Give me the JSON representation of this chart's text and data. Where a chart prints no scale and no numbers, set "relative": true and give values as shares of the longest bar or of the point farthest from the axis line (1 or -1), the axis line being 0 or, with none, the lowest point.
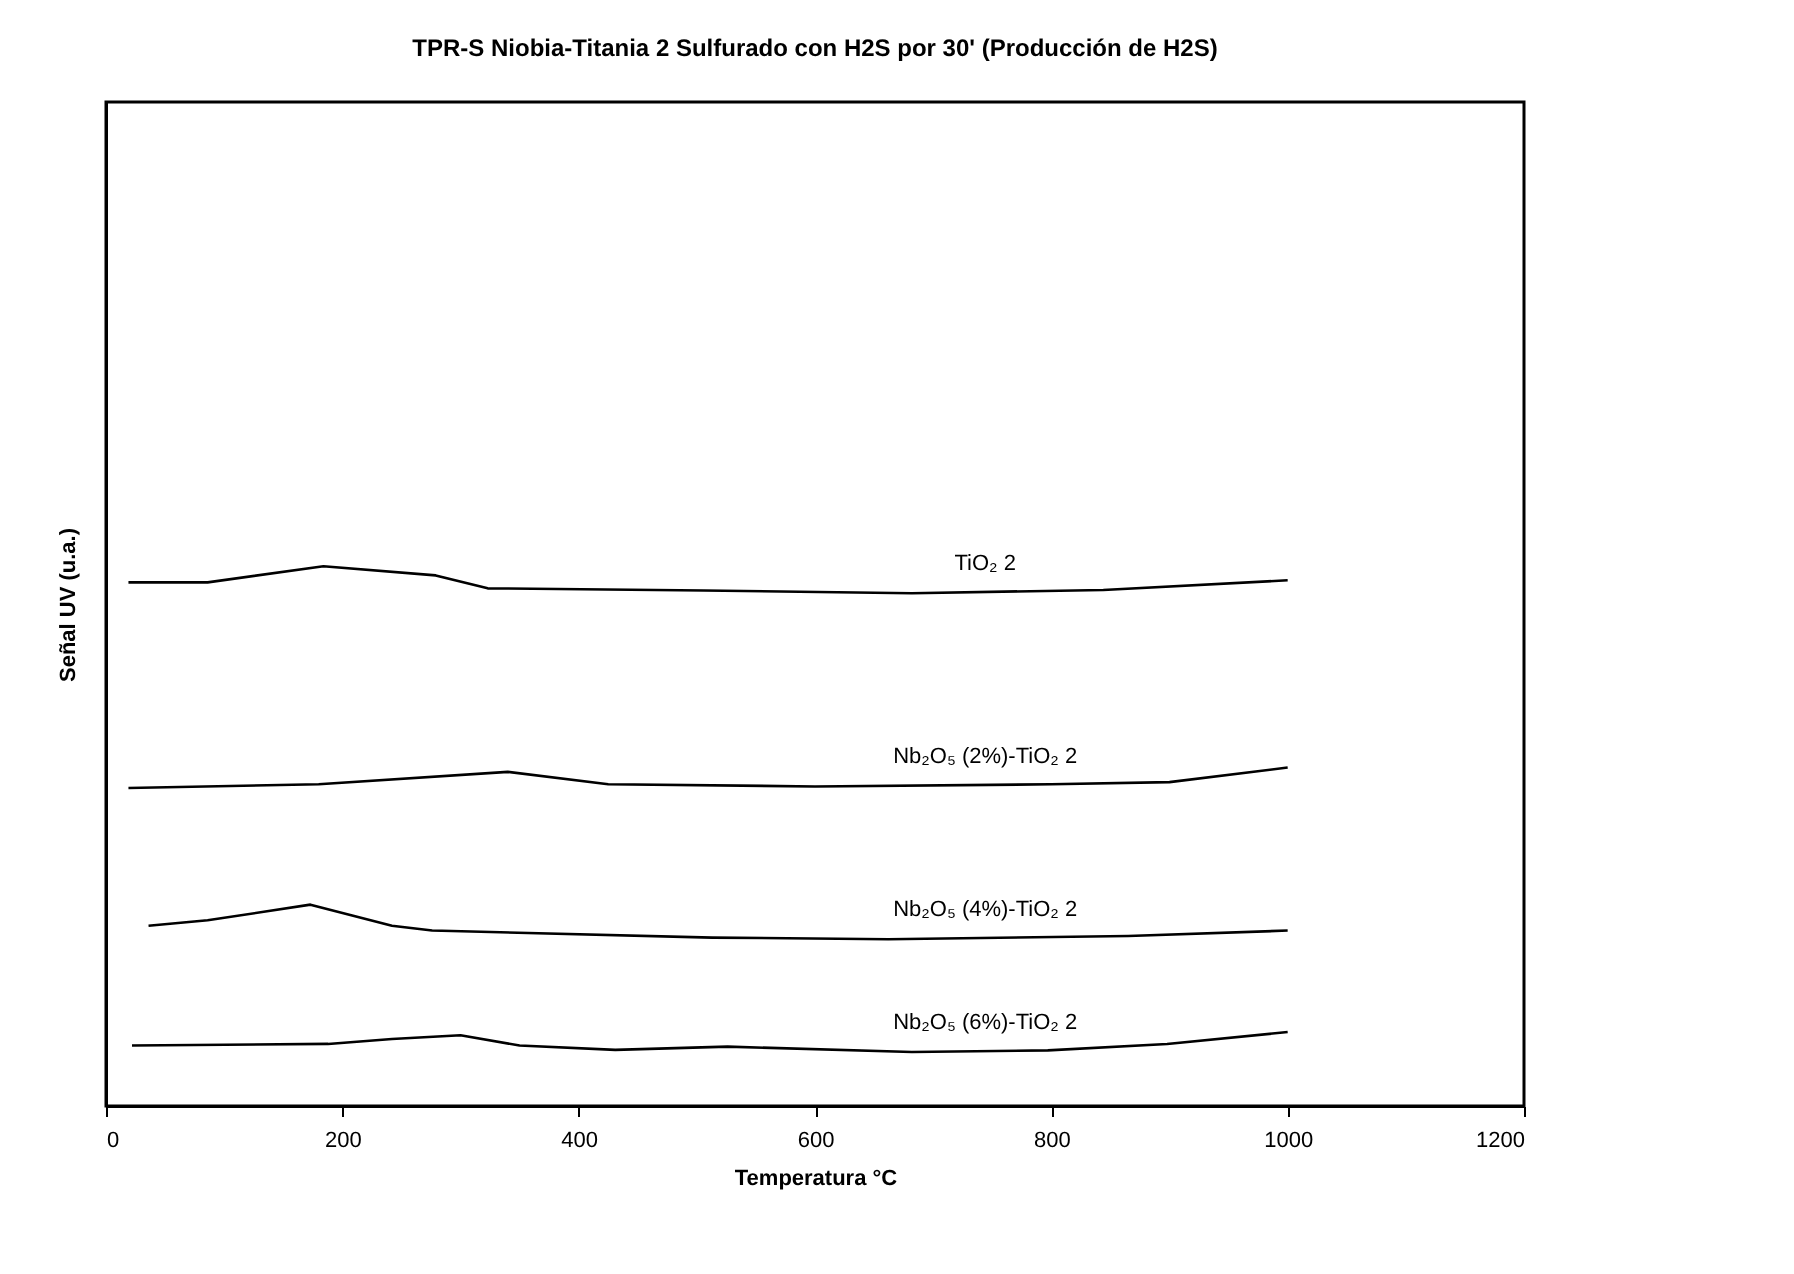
{
  "chart_data": {
    "type": "line",
    "title": "TPR-S Niobia-Titania 2 Sulfurado con H2S por 30' (Producción de H2S)",
    "xlabel": "Temperatura °C",
    "ylabel": "Señal UV (u.a.)",
    "relative": true,
    "xlim": [
      0,
      1200
    ],
    "xticks": [
      0,
      200,
      400,
      600,
      800,
      1000,
      1200
    ],
    "grid": false,
    "legend": false,
    "marker": "none",
    "line_style": "solid",
    "series": [
      {
        "name": "TiO₂ 2",
        "color": "#000000",
        "x": [
          19,
          86,
          184,
          279,
          323,
          506,
          682,
          844,
          1000
        ],
        "values": [
          0.97,
          0.97,
          1.0,
          0.983,
          0.959,
          0.955,
          0.95,
          0.956,
          0.974
        ]
      },
      {
        "name": "Nb₂O₅ (2%)-TiO₂ 2",
        "color": "#000000",
        "x": [
          19,
          180,
          340,
          425,
          600,
          800,
          900,
          1000
        ],
        "values": [
          0.589,
          0.596,
          0.619,
          0.596,
          0.592,
          0.596,
          0.6,
          0.627
        ]
      },
      {
        "name": "Nb₂O₅ (4%)-TiO₂ 2",
        "color": "#000000",
        "x": [
          36,
          86,
          173,
          242,
          276,
          513,
          662,
          865,
          1000
        ],
        "values": [
          0.334,
          0.344,
          0.373,
          0.334,
          0.325,
          0.312,
          0.309,
          0.315,
          0.325
        ]
      },
      {
        "name": "Nb₂O₅ (6%)-TiO₂ 2",
        "color": "#000000",
        "x": [
          22,
          188,
          242,
          300,
          350,
          431,
          526,
          682,
          797,
          898,
          1000
        ],
        "values": [
          0.112,
          0.115,
          0.124,
          0.131,
          0.112,
          0.104,
          0.11,
          0.1,
          0.103,
          0.115,
          0.137
        ]
      }
    ]
  }
}
